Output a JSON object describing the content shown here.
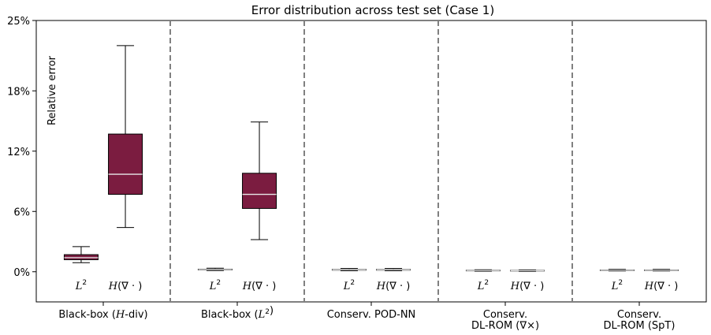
{
  "chart_data": {
    "type": "box",
    "title": "Error distribution across test set (Case 1)",
    "ylabel": "Relative error",
    "ylim": [
      -0.03,
      0.25
    ],
    "yticks": [
      0,
      0.06,
      0.12,
      0.18,
      0.25
    ],
    "ytick_labels": [
      "0%",
      "6%",
      "12%",
      "18%",
      "25%"
    ],
    "box_color": "#7b1c40",
    "median_color": "#e8e8e8",
    "separator_style": "dashed",
    "groups": [
      {
        "label": [
          "Black-box (H-div)"
        ],
        "boxes": [
          {
            "metric": "L²",
            "whislo": 0.009,
            "q1": 0.012,
            "med": 0.014,
            "q3": 0.017,
            "whishi": 0.025
          },
          {
            "metric": "H(∇·)",
            "whislo": 0.044,
            "q1": 0.077,
            "med": 0.097,
            "q3": 0.137,
            "whishi": 0.225
          }
        ]
      },
      {
        "label": [
          "Black-box (L²)"
        ],
        "boxes": [
          {
            "metric": "L²",
            "whislo": 0.0012,
            "q1": 0.0018,
            "med": 0.0022,
            "q3": 0.0026,
            "whishi": 0.0035
          },
          {
            "metric": "H(∇·)",
            "whislo": 0.032,
            "q1": 0.063,
            "med": 0.077,
            "q3": 0.098,
            "whishi": 0.149
          }
        ]
      },
      {
        "label": [
          "Conserv. POD-NN"
        ],
        "boxes": [
          {
            "metric": "L²",
            "whislo": 0.001,
            "q1": 0.0016,
            "med": 0.002,
            "q3": 0.0024,
            "whishi": 0.0032
          },
          {
            "metric": "H(∇·)",
            "whislo": 0.001,
            "q1": 0.0016,
            "med": 0.002,
            "q3": 0.0024,
            "whishi": 0.0032
          }
        ]
      },
      {
        "label": [
          "Conserv.",
          "DL-ROM (∇×)"
        ],
        "boxes": [
          {
            "metric": "L²",
            "whislo": 0.0005,
            "q1": 0.0009,
            "med": 0.0012,
            "q3": 0.0015,
            "whishi": 0.002
          },
          {
            "metric": "H(∇·)",
            "whislo": 0.0004,
            "q1": 0.0008,
            "med": 0.0011,
            "q3": 0.0014,
            "whishi": 0.0019
          }
        ]
      },
      {
        "label": [
          "Conserv.",
          "DL-ROM (SpT)"
        ],
        "boxes": [
          {
            "metric": "L²",
            "whislo": 0.0008,
            "q1": 0.0012,
            "med": 0.0015,
            "q3": 0.0018,
            "whishi": 0.0024
          },
          {
            "metric": "H(∇·)",
            "whislo": 0.0008,
            "q1": 0.0012,
            "med": 0.0015,
            "q3": 0.0018,
            "whishi": 0.0024
          }
        ]
      }
    ]
  }
}
